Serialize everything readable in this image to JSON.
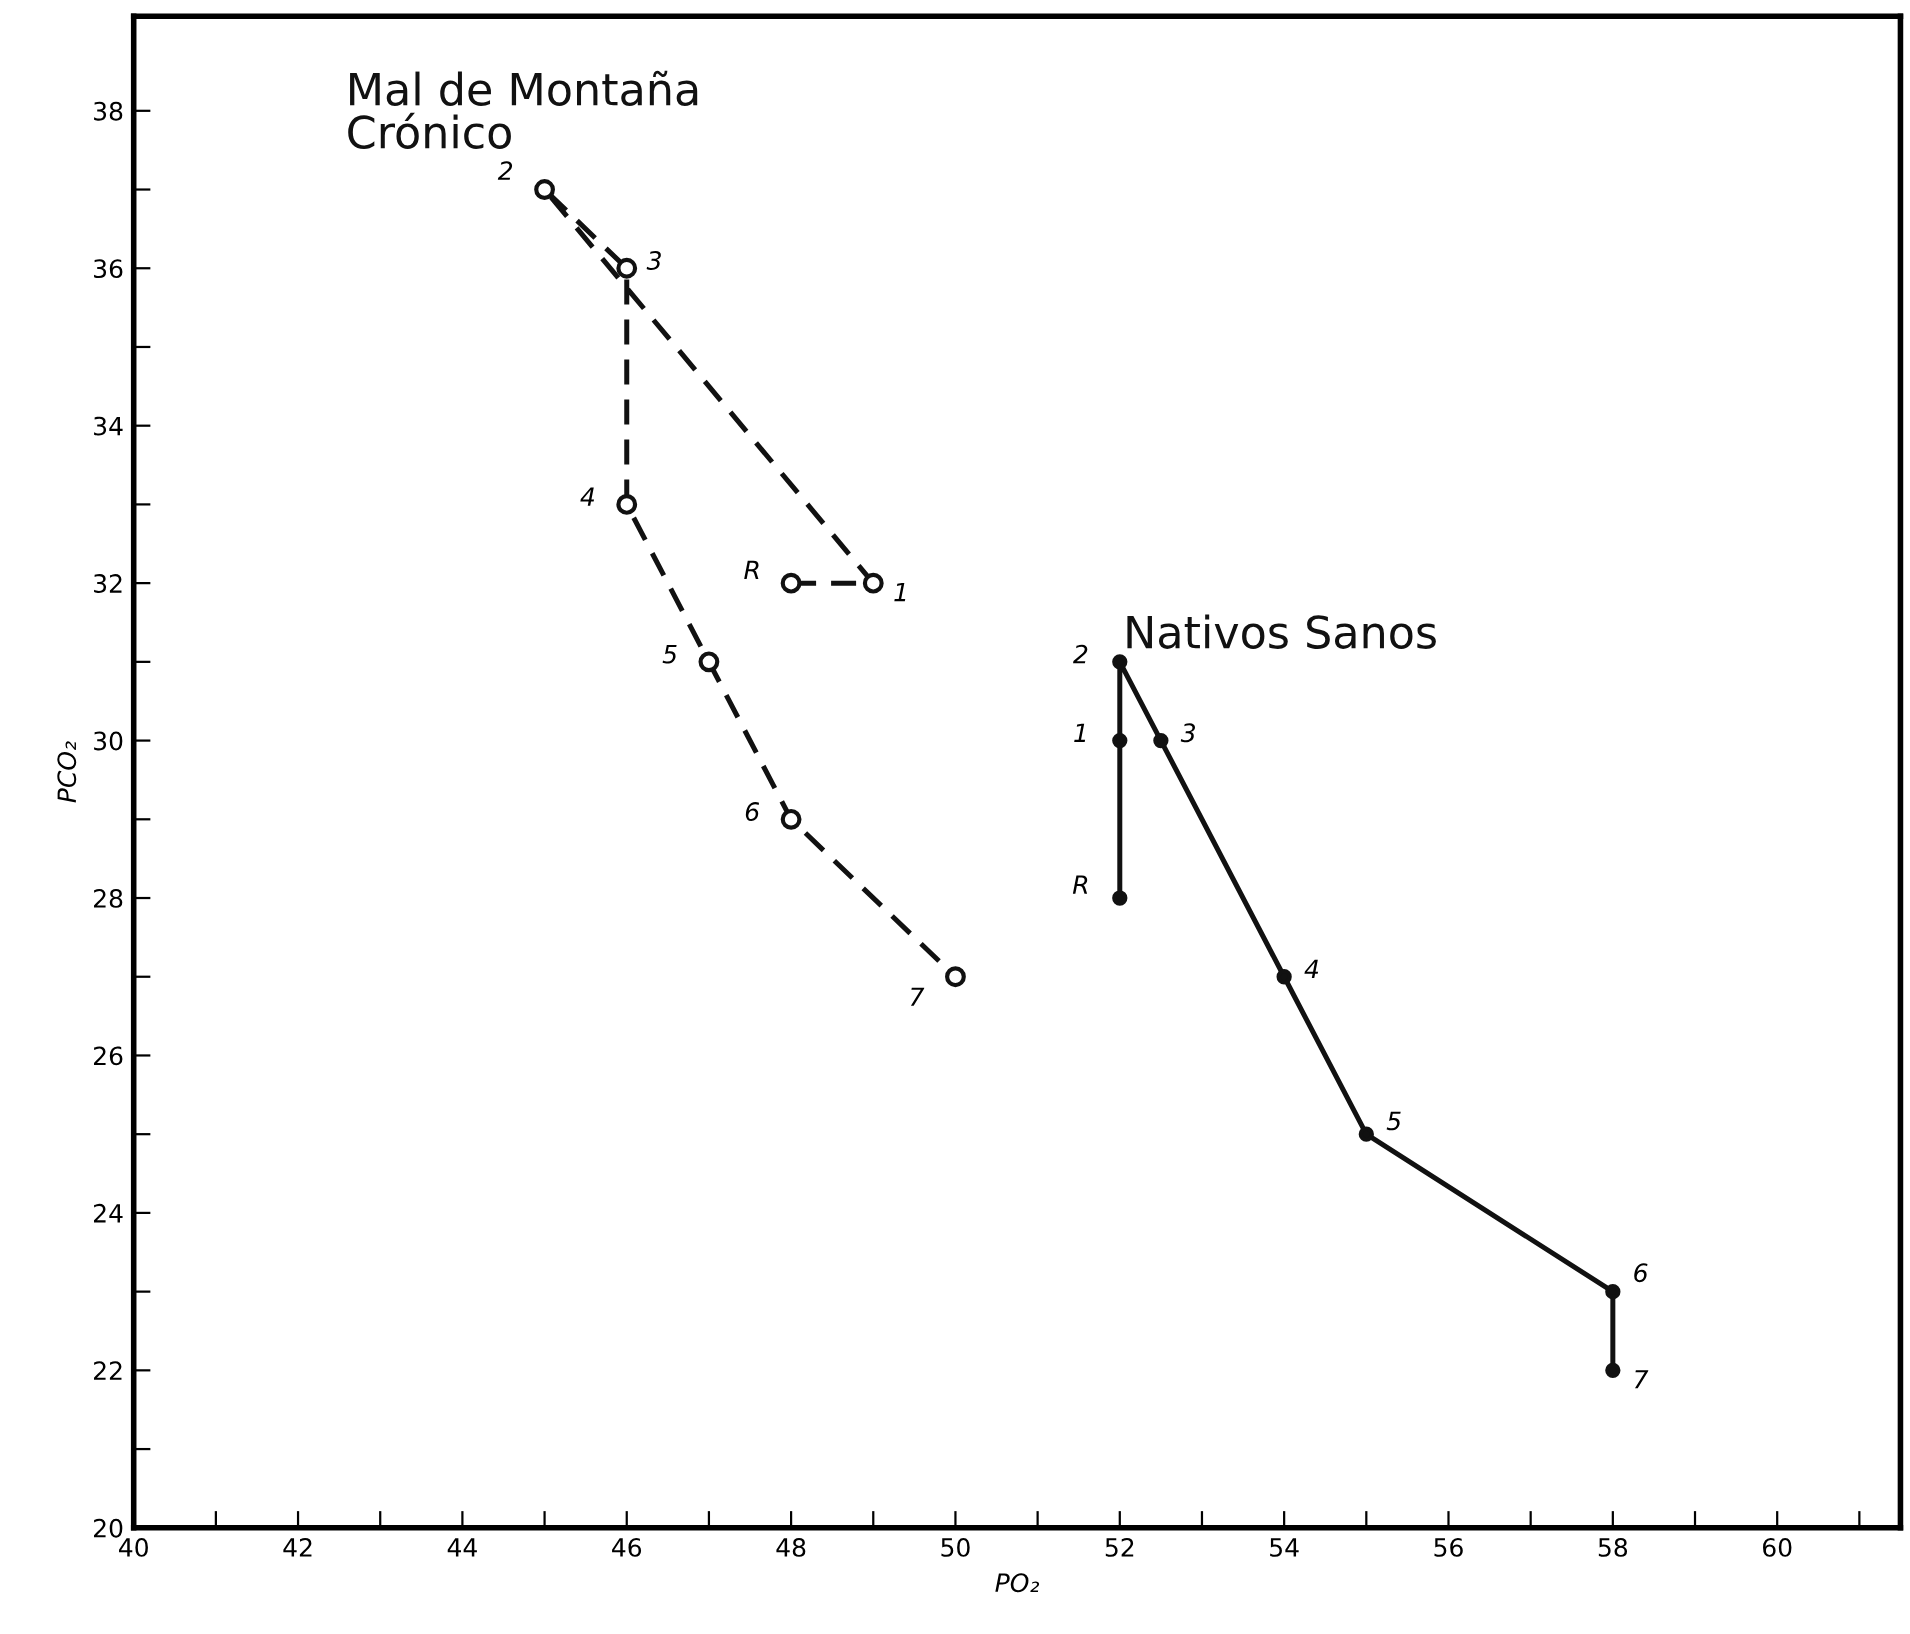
{
  "chart_data": {
    "type": "line",
    "xlabel": "PO₂",
    "ylabel": "PCO₂",
    "xlim": [
      40,
      61.5
    ],
    "ylim": [
      20,
      39.2
    ],
    "xticks": [
      40,
      {
        "value": 41,
        "label": null
      },
      42,
      {
        "value": 43,
        "label": null
      },
      44,
      {
        "value": 45,
        "label": null
      },
      46,
      {
        "value": 47,
        "label": null
      },
      48,
      {
        "value": 49,
        "label": null
      },
      50,
      {
        "value": 51,
        "label": null
      },
      52,
      {
        "value": 53,
        "label": null
      },
      54,
      {
        "value": 55,
        "label": null
      },
      56,
      {
        "value": 57,
        "label": null
      },
      58,
      {
        "value": 59,
        "label": null
      },
      60,
      {
        "value": 61,
        "label": null
      }
    ],
    "yticks": [
      20,
      {
        "value": 21,
        "label": null
      },
      22,
      {
        "value": 23,
        "label": null
      },
      24,
      {
        "value": 25,
        "label": null
      },
      26,
      {
        "value": 27,
        "label": null
      },
      28,
      {
        "value": 29,
        "label": null
      },
      30,
      {
        "value": 31,
        "label": null
      },
      32,
      {
        "value": 33,
        "label": null
      },
      34,
      {
        "value": 35,
        "label": null
      },
      36,
      {
        "value": 37,
        "label": null
      },
      38
    ],
    "grid": false,
    "marker": "circle",
    "series": [
      {
        "name": "Mal de Montaña\nCrónico",
        "color": "#111111",
        "line_style": "dashed",
        "x": [
          48,
          49,
          45,
          46,
          46,
          47,
          48,
          50
        ],
        "values": [
          32,
          32,
          37,
          36,
          33,
          31,
          29,
          27
        ]
      },
      {
        "name": "Nativos Sanos",
        "color": "#111111",
        "line_style": "solid",
        "x": [
          52,
          52,
          52,
          52.5,
          54,
          55,
          58,
          58
        ],
        "values": [
          28,
          30,
          31,
          30,
          27,
          25,
          23,
          22
        ]
      }
    ],
    "annotations": [
      {
        "text": "R",
        "x": 48,
        "y": 32
      },
      {
        "text": "1",
        "x": 49,
        "y": 32
      },
      {
        "text": "2",
        "x": 45,
        "y": 37
      },
      {
        "text": "3",
        "x": 46,
        "y": 36
      },
      {
        "text": "4",
        "x": 46,
        "y": 33
      },
      {
        "text": "5",
        "x": 47,
        "y": 31
      },
      {
        "text": "6",
        "x": 48,
        "y": 29
      },
      {
        "text": "7",
        "x": 50,
        "y": 27
      },
      {
        "text": "R",
        "x": 52,
        "y": 28
      },
      {
        "text": "1",
        "x": 52,
        "y": 30
      },
      {
        "text": "2",
        "x": 52,
        "y": 31
      },
      {
        "text": "3",
        "x": 52.5,
        "y": 30
      },
      {
        "text": "4",
        "x": 54,
        "y": 27
      },
      {
        "text": "5",
        "x": 55,
        "y": 25
      },
      {
        "text": "6",
        "x": 58,
        "y": 23
      },
      {
        "text": "7",
        "x": 58,
        "y": 22
      }
    ]
  }
}
